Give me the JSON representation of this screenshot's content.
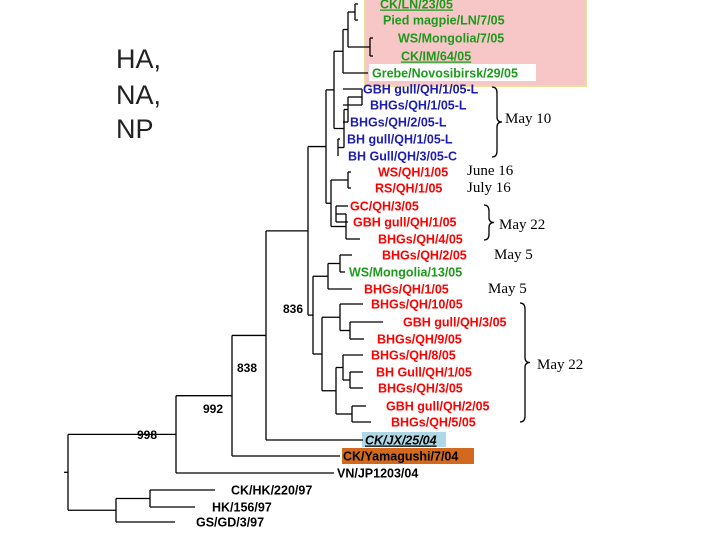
{
  "figure": {
    "title_lines": [
      "HA,",
      "NA,",
      "NP"
    ],
    "colors": {
      "green": "#1d9a1d",
      "blue": "#1c1cb0",
      "red": "#ff0000",
      "black": "#000000",
      "highlight_pink": "#f7c6c6",
      "highlight_border": "#eadf9a",
      "highlight_blue": "#aed8e6",
      "highlight_orange": "#d2691e"
    },
    "leaves": [
      {
        "label": "CK/LN/23/05",
        "color": "green",
        "underline": true
      },
      {
        "label": "Pied magpie/LN/7/05",
        "color": "green"
      },
      {
        "label": "WS/Mongolia/7/05",
        "color": "green"
      },
      {
        "label": "CK/IM/64/05",
        "color": "green",
        "underline": true
      },
      {
        "label": "Grebe/Novosibirsk/29/05",
        "color": "green",
        "boxed": true
      },
      {
        "label": "GBH gull/QH/1/05-L",
        "color": "blue"
      },
      {
        "label": "BHGs/QH/1/05-L",
        "color": "blue"
      },
      {
        "label": "BHGs/QH/2/05-L",
        "color": "blue"
      },
      {
        "label": "BH gull/QH/1/05-L",
        "color": "blue"
      },
      {
        "label": "BH Gull/QH/3/05-C",
        "color": "blue"
      },
      {
        "label": "WS/QH/1/05",
        "color": "red"
      },
      {
        "label": "RS/QH/1/05",
        "color": "red"
      },
      {
        "label": "GC/QH/3/05",
        "color": "red"
      },
      {
        "label": "GBH gull/QH/1/05",
        "color": "red"
      },
      {
        "label": "BHGs/QH/4/05",
        "color": "red"
      },
      {
        "label": "BHGs/QH/2/05",
        "color": "red"
      },
      {
        "label": "WS/Mongolia/13/05",
        "color": "green"
      },
      {
        "label": "BHGs/QH/1/05",
        "color": "red"
      },
      {
        "label": "BHGs/QH/10/05",
        "color": "red"
      },
      {
        "label": "GBH gull/QH/3/05",
        "color": "red"
      },
      {
        "label": "BHGs/QH/9/05",
        "color": "red"
      },
      {
        "label": "BHGs/QH/8/05",
        "color": "red"
      },
      {
        "label": "BH Gull/QH/1/05",
        "color": "red"
      },
      {
        "label": "BHGs/QH/3/05",
        "color": "red"
      },
      {
        "label": "GBH gull/QH/2/05",
        "color": "red"
      },
      {
        "label": "BHGs/QH/5/05",
        "color": "red"
      },
      {
        "label": "CK/JX/25/04",
        "color": "black",
        "italic": true,
        "underline": true,
        "highlight": "blue"
      },
      {
        "label": "CK/Yamagushi/7/04",
        "color": "black",
        "highlight": "orange"
      },
      {
        "label": "VN/JP1203/04",
        "color": "black"
      },
      {
        "label": "CK/HK/220/97",
        "color": "black"
      },
      {
        "label": "HK/156/97",
        "color": "black"
      },
      {
        "label": "GS/GD/3/97",
        "color": "black"
      }
    ],
    "bootstrap": [
      "998",
      "992",
      "838",
      "836"
    ],
    "annotations": [
      "May 10",
      "June 16",
      "July 16",
      "May 22",
      "May 5",
      "May 5",
      "May 22"
    ]
  }
}
